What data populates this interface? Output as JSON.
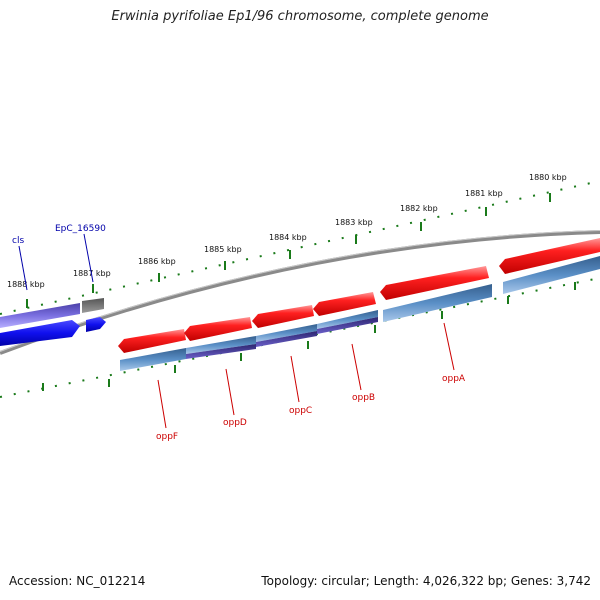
{
  "title": "Erwinia pyrifoliae Ep1/96 chromosome, complete genome",
  "footer": {
    "accession": "Accession: NC_012214",
    "topology": "Topology: circular; Length: 4,026,322 bp; Genes: 3,742"
  },
  "ruler_labels": [
    "1888 kbp",
    "1887 kbp",
    "1886 kbp",
    "1885 kbp",
    "1884 kbp",
    "1883 kbp",
    "1882 kbp",
    "1881 kbp",
    "1880 kbp"
  ],
  "genes": [
    {
      "name": "cls",
      "color": "#0000aa"
    },
    {
      "name": "EpC_16590",
      "color": "#0000aa"
    },
    {
      "name": "oppF",
      "color": "#cc0000"
    },
    {
      "name": "oppD",
      "color": "#cc0000"
    },
    {
      "name": "oppC",
      "color": "#cc0000"
    },
    {
      "name": "oppB",
      "color": "#cc0000"
    },
    {
      "name": "oppA",
      "color": "#cc0000"
    }
  ],
  "colors": {
    "ruler_ticks": "#1a7a1a",
    "backbone": "#888888",
    "gene_red": "#ff1a1a",
    "gene_blue": "#1a1aff",
    "cds_steelblue": "#4f86c0",
    "cds_purple": "#4a3f9a",
    "cds_lavender": "#7a6fd8",
    "cds_gray": "#666666"
  }
}
